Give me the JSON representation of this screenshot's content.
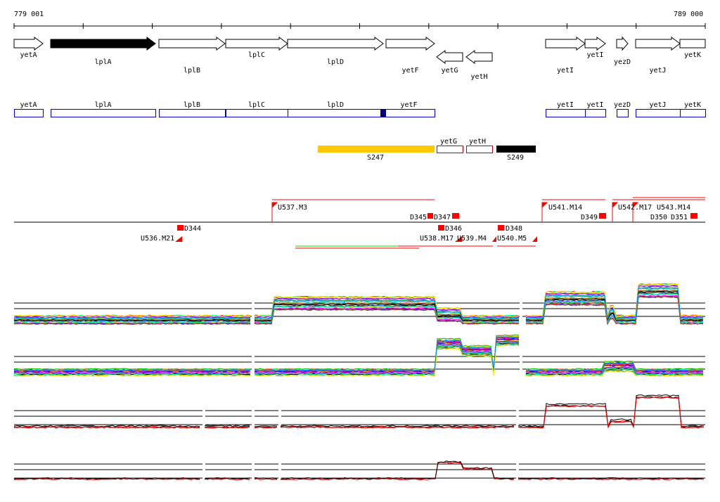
{
  "ruler": {
    "start_label": "779 001",
    "end_label": "789 000"
  },
  "genes": [
    {
      "name": "yetA",
      "strand": "+",
      "filled": false
    },
    {
      "name": "lplA",
      "strand": "+",
      "filled": true
    },
    {
      "name": "lplB",
      "strand": "+",
      "filled": false
    },
    {
      "name": "lplC",
      "strand": "+",
      "filled": false
    },
    {
      "name": "lplD",
      "strand": "+",
      "filled": false
    },
    {
      "name": "yetF",
      "strand": "+",
      "filled": false
    },
    {
      "name": "yetG",
      "strand": "-",
      "filled": false
    },
    {
      "name": "yetH",
      "strand": "-",
      "filled": false
    },
    {
      "name": "yetI",
      "strand": "+",
      "filled": false
    },
    {
      "name": "yetI",
      "strand": "+",
      "filled": false
    },
    {
      "name": "yezD",
      "strand": "+",
      "filled": false
    },
    {
      "name": "yetJ",
      "strand": "+",
      "filled": false
    },
    {
      "name": "yetK",
      "strand": "+",
      "filled": false
    }
  ],
  "gene_boxes": [
    "yetA",
    "lplA",
    "lplB",
    "lplC",
    "lplD",
    "yetF",
    "yetI",
    "yetI",
    "yezD",
    "yetJ",
    "yetK"
  ],
  "features": {
    "s247": "S247",
    "yetG": "yetG",
    "yetH": "yetH",
    "s249": "S249"
  },
  "annotations": {
    "u537": "U537.M3",
    "d345": "D345",
    "d347": "D347",
    "d344": "D344",
    "u536": "U536.M21",
    "d346": "D346",
    "u538": "U538.M17",
    "u539": "U539.M4",
    "d348": "D348",
    "u540": "U540.M5",
    "u541": "U541.M14",
    "d349": "D349",
    "u542": "U542.M17",
    "u543": "U543.M14",
    "d350": "D350",
    "d351": "D351"
  },
  "colors": {
    "blue": "#0000cc",
    "red": "#ff0000",
    "orange": "#ffc800",
    "green": "#00dd00"
  }
}
